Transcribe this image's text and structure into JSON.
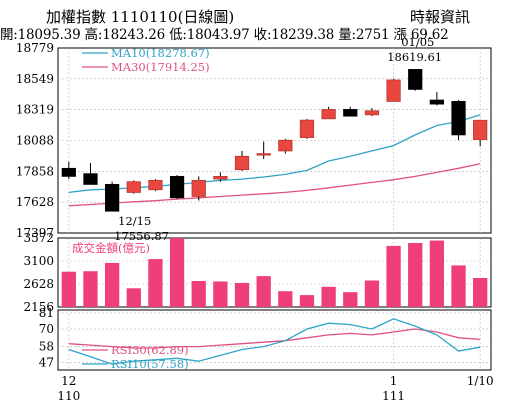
{
  "header": {
    "title": "加權指數 1110110(日線圖)",
    "source": "時報資訊",
    "ohlc_line": "開:18095.39 高:18243.26 低:18043.97 收:18239.38 量:2751 漲 69.62"
  },
  "colors": {
    "up": "#e8463f",
    "down": "#000000",
    "ma10": "#2ea3c8",
    "ma30": "#e0527e",
    "volume": "#ee3f7a",
    "rsi30": "#e0527e",
    "rsi10": "#2ea3c8",
    "grid": "#b8b8b8"
  },
  "chart_data": [
    {
      "type": "candlestick",
      "ylim": [
        17397,
        18779
      ],
      "yticks": [
        18779,
        18549,
        18319,
        18088,
        17858,
        17628,
        17397
      ],
      "grid": true,
      "legend_position": "top-left",
      "series_labels": [
        {
          "name": "MA10",
          "label": "MA10(18278.67)"
        },
        {
          "name": "MA30",
          "label": "MA30(17914.25)"
        }
      ],
      "candles": [
        {
          "open": 17880,
          "high": 17930,
          "low": 17800,
          "close": 17820
        },
        {
          "open": 17840,
          "high": 17920,
          "low": 17760,
          "close": 17760
        },
        {
          "open": 17760,
          "high": 17780,
          "low": 17557,
          "close": 17560
        },
        {
          "open": 17700,
          "high": 17790,
          "low": 17690,
          "close": 17780
        },
        {
          "open": 17720,
          "high": 17800,
          "low": 17710,
          "close": 17790
        },
        {
          "open": 17820,
          "high": 17830,
          "low": 17650,
          "close": 17660
        },
        {
          "open": 17670,
          "high": 17820,
          "low": 17640,
          "close": 17790
        },
        {
          "open": 17800,
          "high": 17850,
          "low": 17780,
          "close": 17820
        },
        {
          "open": 17870,
          "high": 18010,
          "low": 17860,
          "close": 17970
        },
        {
          "open": 17990,
          "high": 18080,
          "low": 17950,
          "close": 17990
        },
        {
          "open": 18010,
          "high": 18100,
          "low": 17990,
          "close": 18090
        },
        {
          "open": 18110,
          "high": 18250,
          "low": 18100,
          "close": 18240
        },
        {
          "open": 18250,
          "high": 18340,
          "low": 18250,
          "close": 18320
        },
        {
          "open": 18320,
          "high": 18340,
          "low": 18270,
          "close": 18270
        },
        {
          "open": 18280,
          "high": 18330,
          "low": 18270,
          "close": 18310
        },
        {
          "open": 18380,
          "high": 18550,
          "low": 18380,
          "close": 18540
        },
        {
          "open": 18619,
          "high": 18619,
          "low": 18460,
          "close": 18470
        },
        {
          "open": 18390,
          "high": 18450,
          "low": 18350,
          "close": 18360
        },
        {
          "open": 18380,
          "high": 18390,
          "low": 18090,
          "close": 18130
        },
        {
          "open": 18095,
          "high": 18243,
          "low": 18044,
          "close": 18239
        }
      ],
      "ma10": [
        17700,
        17720,
        17725,
        17735,
        17745,
        17760,
        17775,
        17790,
        17800,
        17815,
        17835,
        17865,
        17935,
        17970,
        18010,
        18050,
        18130,
        18200,
        18230,
        18279
      ],
      "ma30": [
        17600,
        17610,
        17620,
        17630,
        17638,
        17650,
        17660,
        17670,
        17680,
        17690,
        17700,
        17715,
        17735,
        17755,
        17775,
        17795,
        17820,
        17850,
        17880,
        17914
      ],
      "annotations": [
        {
          "index": 2,
          "date": "12/15",
          "value": "17556.87"
        },
        {
          "index": 16,
          "date": "01/05",
          "value": "18619.61"
        }
      ]
    },
    {
      "type": "bar",
      "title": "成交金額(億元)",
      "ylim": [
        2156,
        3572
      ],
      "yticks": [
        3572,
        3100,
        2628,
        2156
      ],
      "values": [
        2880,
        2890,
        3060,
        2540,
        3140,
        3620,
        2690,
        2680,
        2650,
        2790,
        2480,
        2400,
        2570,
        2460,
        2700,
        3410,
        3470,
        3520,
        3010,
        2751
      ]
    },
    {
      "type": "line",
      "yticks": [
        81,
        70,
        58,
        47
      ],
      "ylim": [
        42,
        83
      ],
      "series": [
        {
          "name": "RSI30",
          "label": "RSI30(62.89)",
          "values": [
            60,
            59,
            58,
            57,
            57,
            58,
            58,
            59,
            60,
            61,
            62,
            64,
            66,
            67,
            66,
            68,
            70,
            68,
            64,
            62.89
          ]
        },
        {
          "name": "RSI10",
          "label": "RSI10(57.58)",
          "values": [
            56,
            51,
            46,
            48,
            49,
            50,
            48,
            52,
            56,
            58,
            62,
            70,
            74,
            73,
            70,
            77,
            72,
            66,
            55,
            57.58
          ]
        }
      ],
      "xticks": [
        {
          "index": 0,
          "line1": "12",
          "line2": "110"
        },
        {
          "index": 15,
          "line1": "1",
          "line2": "111"
        },
        {
          "index": 19,
          "line1": "1/10",
          "line2": ""
        }
      ]
    }
  ]
}
